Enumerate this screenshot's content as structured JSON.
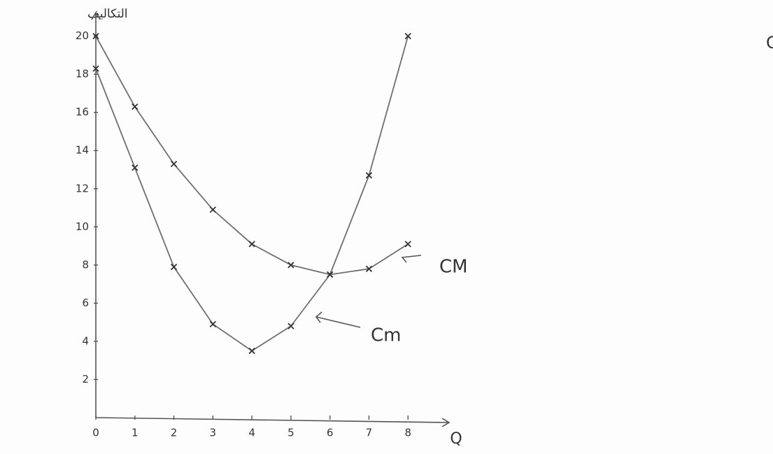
{
  "chart_data": {
    "type": "line",
    "title": "التمثيل البياني لـ : CM و Cm",
    "y_label": "التكاليف",
    "x_label": "Q",
    "x": [
      0,
      1,
      2,
      3,
      4,
      5,
      6,
      7,
      8
    ],
    "series": [
      {
        "name": "CM",
        "color": "#6e6e6e",
        "values": [
          20,
          16.3,
          13.3,
          10.9,
          9.1,
          8.0,
          7.5,
          7.8,
          9.1
        ]
      },
      {
        "name": "Cm",
        "color": "#6e6e6e",
        "values": [
          18.3,
          13.1,
          7.9,
          4.9,
          3.5,
          4.8,
          7.5,
          12.7,
          20
        ]
      }
    ],
    "xlim": [
      0,
      9
    ],
    "ylim": [
      0,
      20.5
    ],
    "xticks": [
      0,
      1,
      2,
      3,
      4,
      5,
      6,
      7,
      8
    ],
    "yticks": [
      2,
      4,
      6,
      8,
      10,
      12,
      14,
      16,
      18,
      20
    ],
    "grid": false
  }
}
